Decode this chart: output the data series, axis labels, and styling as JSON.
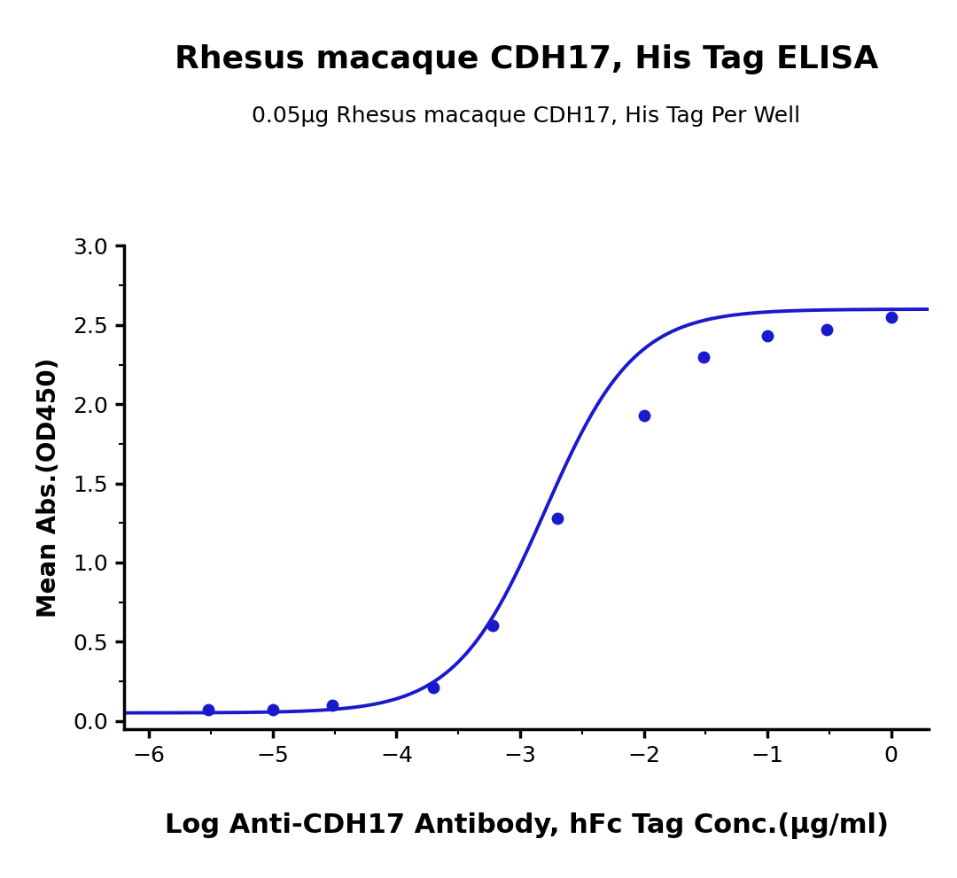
{
  "title": "Rhesus macaque CDH17, His Tag ELISA",
  "subtitle": "0.05μg Rhesus macaque CDH17, His Tag Per Well",
  "xlabel": "Log Anti-CDH17 Antibody, hFc Tag Conc.(μg/ml)",
  "ylabel": "Mean Abs.(OD450)",
  "x_data": [
    -5.52,
    -5.0,
    -4.52,
    -3.7,
    -3.22,
    -2.7,
    -2.0,
    -1.52,
    -1.0,
    -0.52,
    0.0
  ],
  "y_data": [
    0.07,
    0.07,
    0.1,
    0.21,
    0.6,
    1.28,
    1.93,
    2.3,
    2.43,
    2.47,
    2.55
  ],
  "xlim": [
    -6.2,
    0.3
  ],
  "ylim": [
    -0.05,
    3.0
  ],
  "xticks": [
    -6,
    -5,
    -4,
    -3,
    -2,
    -1,
    0
  ],
  "yticks": [
    0.0,
    0.5,
    1.0,
    1.5,
    2.0,
    2.5,
    3.0
  ],
  "line_color": "#1a1acd",
  "dot_color": "#1a1acd",
  "background_color": "#ffffff",
  "title_fontsize": 26,
  "subtitle_fontsize": 18,
  "xlabel_fontsize": 22,
  "ylabel_fontsize": 20,
  "tick_fontsize": 18,
  "linewidth": 2.8,
  "markersize": 10
}
